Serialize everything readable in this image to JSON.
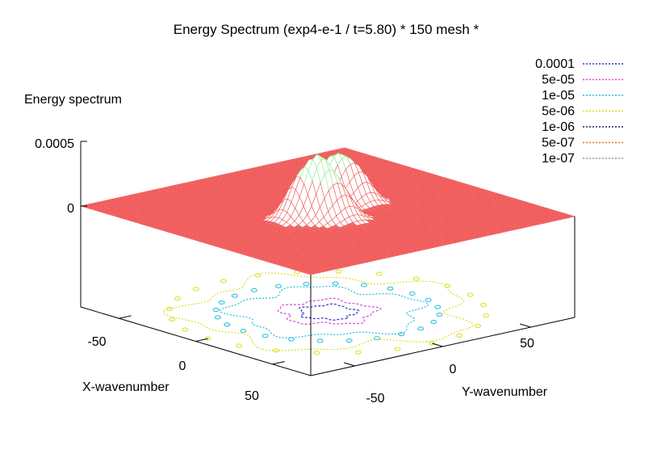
{
  "chart_data": {
    "type": "surface3d",
    "title": "Energy Spectrum (exp4-e-1 / t=5.80) * 150 mesh *",
    "zlabel": "Energy spectrum",
    "xlabel": "X-wavenumber",
    "ylabel": "Y-wavenumber",
    "z_ticks": [
      "0.0005",
      "0"
    ],
    "zlim": [
      0,
      0.0005
    ],
    "x_ticks": [
      "-50",
      "0",
      "50"
    ],
    "y_ticks": [
      "-50",
      "0",
      "50"
    ],
    "xlim": [
      -75,
      75
    ],
    "ylim": [
      -75,
      75
    ],
    "surface_color": "#ee5555",
    "peak_color": "#88ee88",
    "legend": [
      {
        "label": "0.0001",
        "color": "#3333cc",
        "level": 0.0001
      },
      {
        "label": "5e-05",
        "color": "#dd44dd",
        "level": 5e-05
      },
      {
        "label": "1e-05",
        "color": "#22bbdd",
        "level": 1e-05
      },
      {
        "label": "5e-06",
        "color": "#dddd22",
        "level": 5e-06
      },
      {
        "label": "1e-06",
        "color": "#222266",
        "level": 1e-06
      },
      {
        "label": "5e-07",
        "color": "#dd7722",
        "level": 5e-07
      },
      {
        "label": "1e-07",
        "color": "#999999",
        "level": 1e-07
      }
    ],
    "peaks": [
      {
        "x": -8,
        "y": -12,
        "z": 0.00031
      },
      {
        "x": 8,
        "y": 12,
        "z": 0.00042
      },
      {
        "x": -2,
        "y": -20,
        "z": 0.00022
      },
      {
        "x": 2,
        "y": 20,
        "z": 0.00025
      },
      {
        "x": -14,
        "y": -4,
        "z": 0.00018
      },
      {
        "x": 14,
        "y": 4,
        "z": 0.0002
      }
    ],
    "contour_rings": [
      {
        "level": "0.0001",
        "radius": 12
      },
      {
        "level": "5e-05",
        "radius": 20
      },
      {
        "level": "1e-05",
        "radius": 40
      },
      {
        "level": "5e-06",
        "radius": 60
      }
    ]
  }
}
